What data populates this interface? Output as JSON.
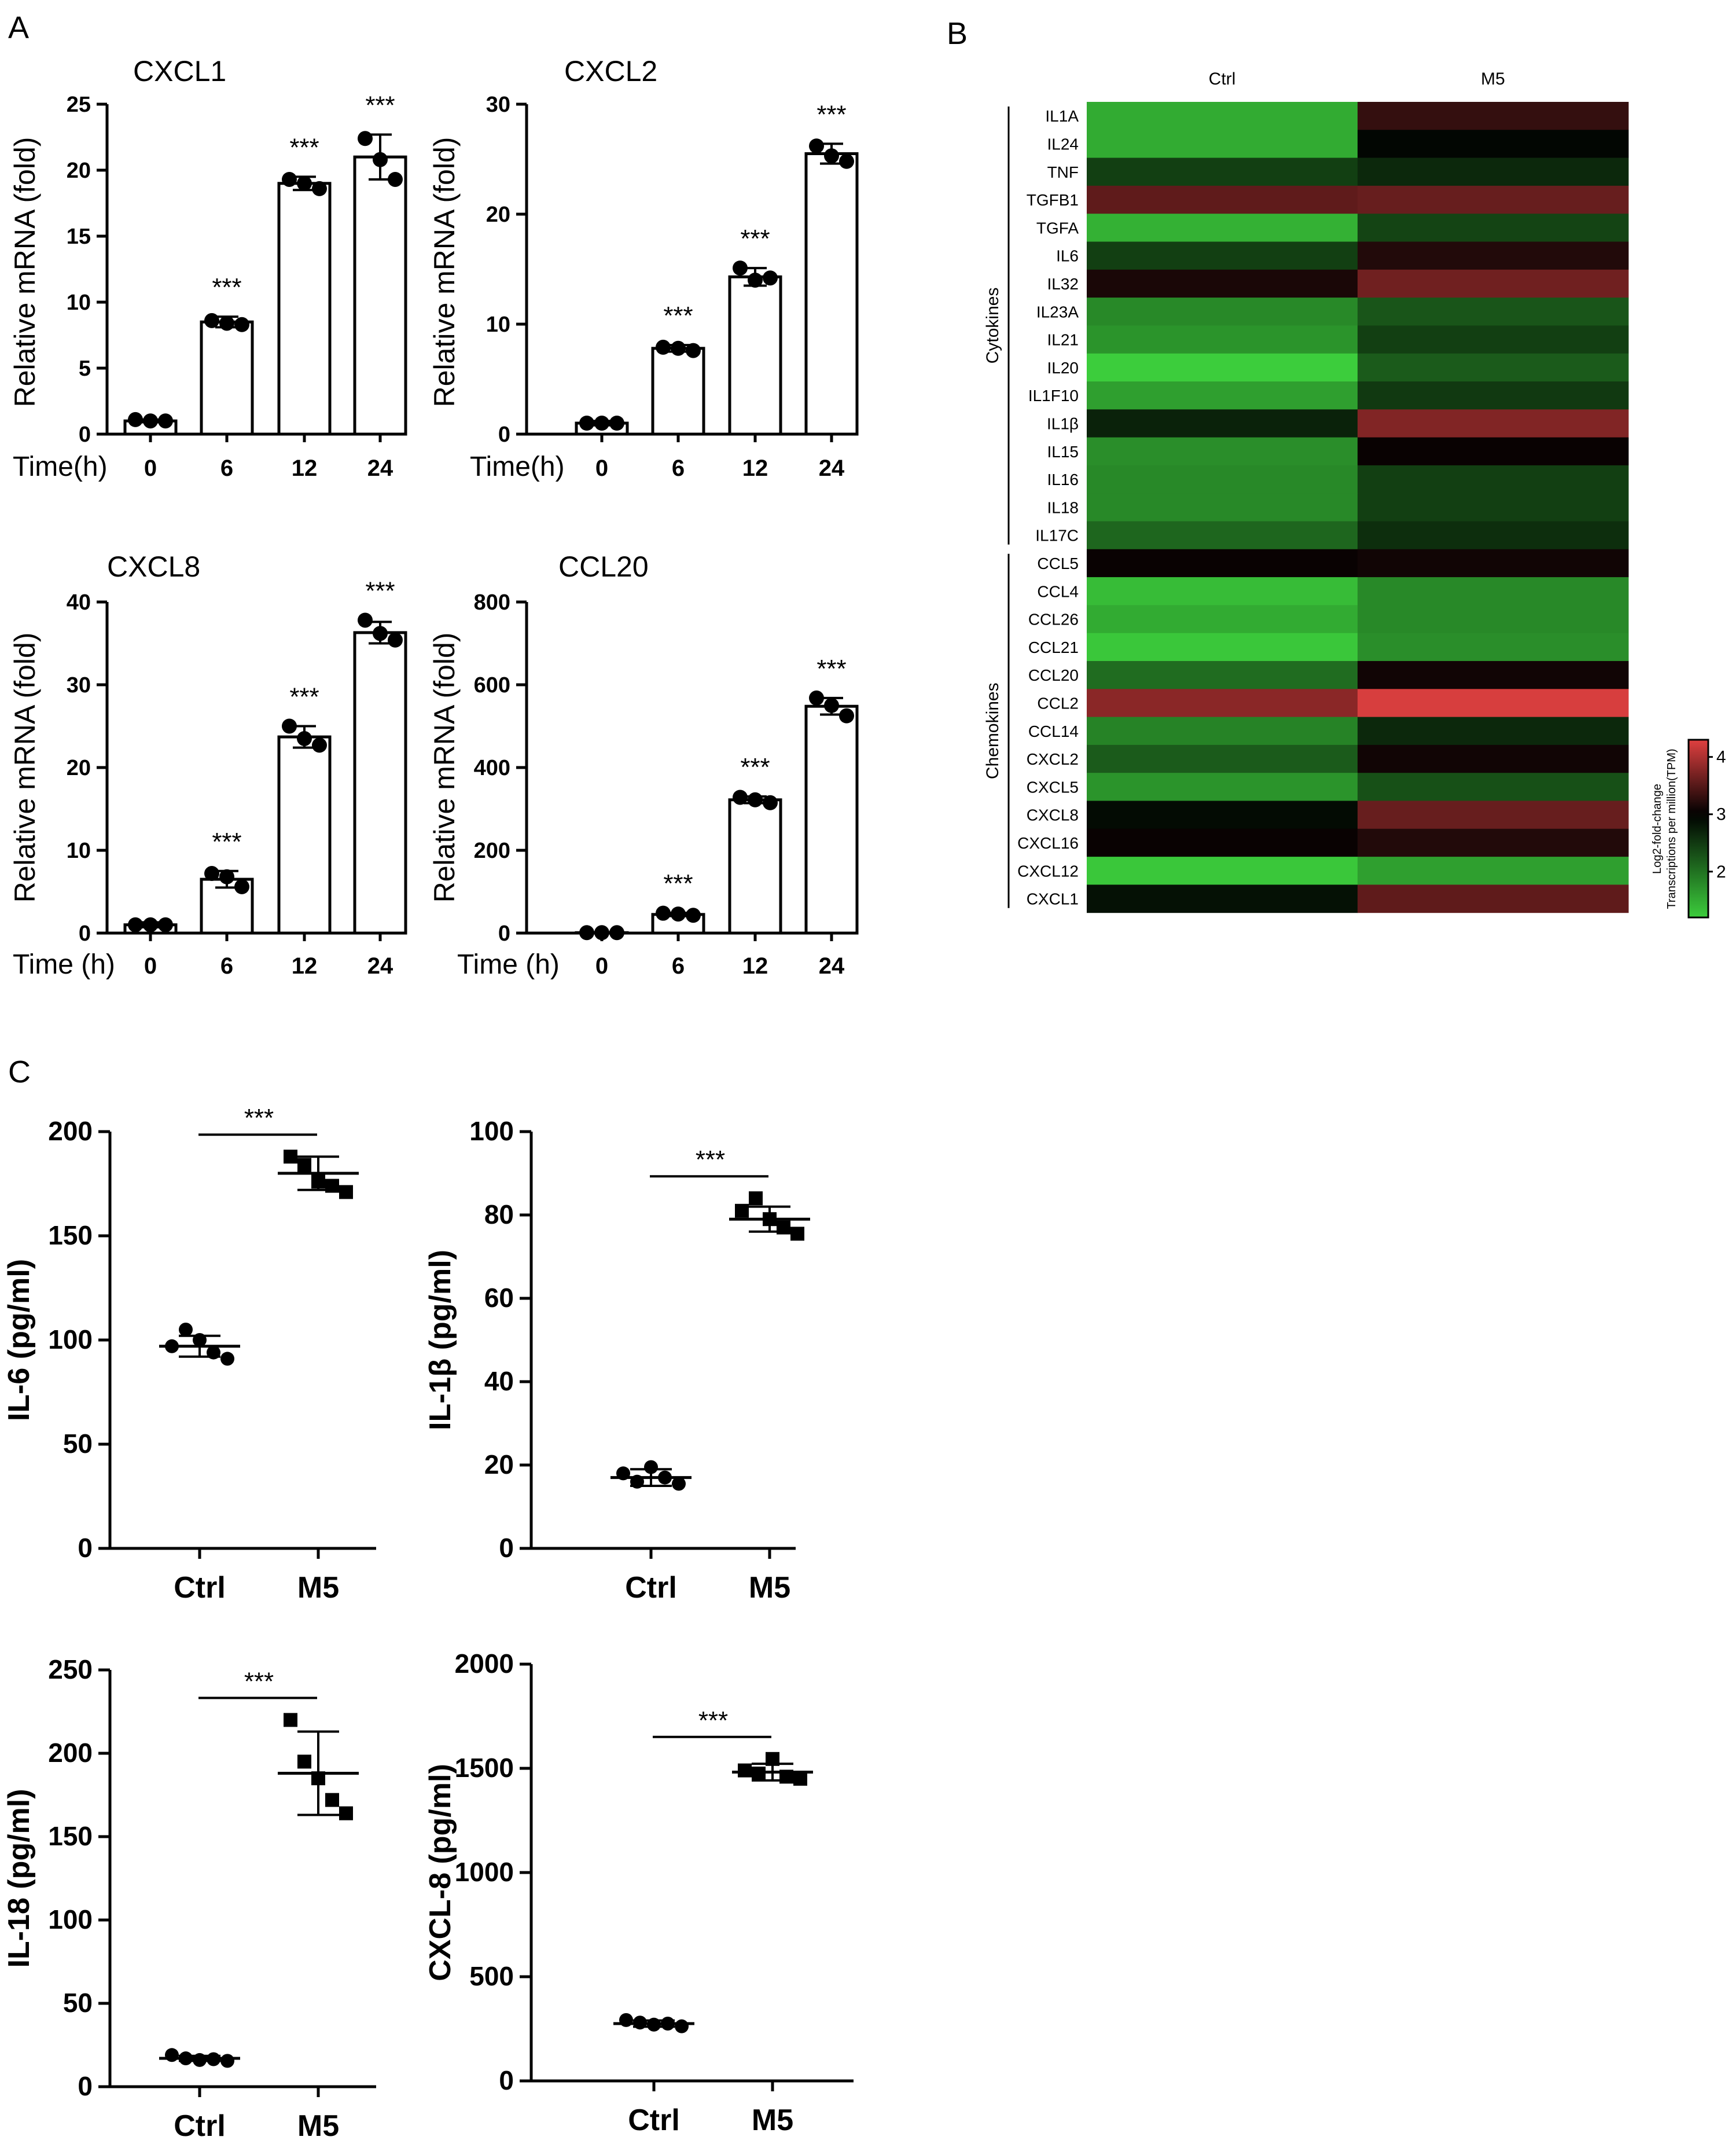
{
  "panels": {
    "A": "A",
    "B": "B",
    "C": "C"
  },
  "chart_data": [
    {
      "id": "cxcl1",
      "type": "bar",
      "title": "CXCL1",
      "xlabel": "Time(h)",
      "ylabel": "Relative mRNA (fold)",
      "categories": [
        "0",
        "6",
        "12",
        "24"
      ],
      "values": [
        1.0,
        8.5,
        19.0,
        21.0
      ],
      "errors": [
        0.1,
        0.4,
        0.5,
        1.7
      ],
      "points": [
        [
          1.1,
          1.0,
          1.0
        ],
        [
          8.6,
          8.4,
          8.3
        ],
        [
          19.3,
          19.0,
          18.6
        ],
        [
          22.4,
          20.8,
          19.3
        ]
      ],
      "significance": [
        "",
        "***",
        "***",
        "***"
      ],
      "ylim": [
        0,
        25
      ],
      "yticks": [
        0,
        5,
        10,
        15,
        20,
        25
      ]
    },
    {
      "id": "cxcl2",
      "type": "bar",
      "title": "CXCL2",
      "xlabel": "Time(h)",
      "ylabel": "Relative mRNA (fold)",
      "categories": [
        "0",
        "6",
        "12",
        "24"
      ],
      "values": [
        1.0,
        7.8,
        14.3,
        25.5
      ],
      "errors": [
        0.2,
        0.3,
        0.8,
        0.9
      ],
      "points": [
        [
          1.0,
          1.0,
          1.0
        ],
        [
          7.9,
          7.8,
          7.6
        ],
        [
          15.1,
          14.0,
          14.2
        ],
        [
          26.2,
          25.3,
          24.8
        ]
      ],
      "significance": [
        "",
        "***",
        "***",
        "***"
      ],
      "ylim": [
        0,
        30
      ],
      "yticks": [
        0,
        10,
        20,
        30
      ]
    },
    {
      "id": "cxcl8",
      "type": "bar",
      "title": "CXCL8",
      "xlabel": "Time (h)",
      "ylabel": "Relative mRNA (fold)",
      "categories": [
        "0",
        "6",
        "12",
        "24"
      ],
      "values": [
        1.0,
        6.5,
        23.7,
        36.3
      ],
      "errors": [
        0.3,
        1.0,
        1.3,
        1.3
      ],
      "points": [
        [
          1.0,
          1.0,
          1.0
        ],
        [
          7.2,
          6.8,
          5.6
        ],
        [
          25.0,
          23.5,
          22.7
        ],
        [
          37.8,
          36.2,
          35.4
        ]
      ],
      "significance": [
        "",
        "***",
        "***",
        "***"
      ],
      "ylim": [
        0,
        40
      ],
      "yticks": [
        0,
        10,
        20,
        30,
        40
      ]
    },
    {
      "id": "ccl20",
      "type": "bar",
      "title": "CCL20",
      "xlabel": "Time (h)",
      "ylabel": "Relative mRNA (fold)",
      "categories": [
        "0",
        "6",
        "12",
        "24"
      ],
      "values": [
        1.0,
        45.0,
        322.0,
        548.0
      ],
      "errors": [
        0.3,
        4.0,
        8.0,
        20.0
      ],
      "points": [
        [
          1.0,
          1.0,
          1.0
        ],
        [
          48.0,
          46.0,
          43.0
        ],
        [
          328.0,
          322.0,
          315.0
        ],
        [
          568.0,
          550.0,
          525.0
        ]
      ],
      "significance": [
        "",
        "***",
        "***",
        "***"
      ],
      "ylim": [
        0,
        800
      ],
      "yticks": [
        0,
        200,
        400,
        600,
        800
      ]
    },
    {
      "id": "il6",
      "type": "scatter",
      "ylabel": "IL-6 (pg/ml)",
      "categories": [
        "Ctrl",
        "M5"
      ],
      "means": [
        97.0,
        180.0
      ],
      "sds": [
        5.0,
        8.0
      ],
      "points": [
        [
          97.0,
          105.0,
          100.0,
          94.0,
          91.0
        ],
        [
          188.0,
          184.0,
          176.0,
          174.0,
          171.0
        ]
      ],
      "significance": "***",
      "ylim": [
        0,
        200
      ],
      "yticks": [
        0,
        50,
        100,
        150,
        200
      ]
    },
    {
      "id": "il1b",
      "type": "scatter",
      "ylabel": "IL-1β (pg/ml)",
      "categories": [
        "Ctrl",
        "M5"
      ],
      "means": [
        17.0,
        79.0
      ],
      "sds": [
        2.0,
        3.0
      ],
      "points": [
        [
          18.0,
          16.0,
          19.5,
          17.0,
          15.5
        ],
        [
          81.0,
          84.0,
          79.0,
          77.0,
          75.5
        ]
      ],
      "significance": "***",
      "ylim": [
        0,
        100
      ],
      "yticks": [
        0,
        20,
        40,
        60,
        80,
        100
      ]
    },
    {
      "id": "il18",
      "type": "scatter",
      "ylabel": "IL-18 (pg/ml)",
      "categories": [
        "Ctrl",
        "M5"
      ],
      "means": [
        17.0,
        188.0
      ],
      "sds": [
        1.5,
        25.0
      ],
      "points": [
        [
          19.0,
          17.0,
          16.0,
          16.5,
          15.5
        ],
        [
          220.0,
          195.0,
          185.0,
          172.0,
          164.0
        ]
      ],
      "significance": "***",
      "ylim": [
        0,
        250
      ],
      "yticks": [
        0,
        50,
        100,
        150,
        200,
        250
      ]
    },
    {
      "id": "cxcl8-protein",
      "type": "scatter",
      "ylabel": "CXCL-8 (pg/ml)",
      "categories": [
        "Ctrl",
        "M5"
      ],
      "means": [
        275.0,
        1482.0
      ],
      "sds": [
        15.0,
        40.0
      ],
      "points": [
        [
          292.0,
          280.0,
          270.0,
          275.0,
          262.0
        ],
        [
          1490.0,
          1475.0,
          1545.0,
          1460.0,
          1450.0
        ]
      ],
      "significance": "***",
      "ylim": [
        0,
        2000
      ],
      "yticks": [
        0,
        500,
        1000,
        1500,
        2000
      ]
    }
  ],
  "heatmap": {
    "type": "heatmap",
    "columns": [
      "Ctrl",
      "M5"
    ],
    "rows": [
      "IL1A",
      "IL24",
      "TNF",
      "TGFB1",
      "TGFA",
      "IL6",
      "IL32",
      "IL23A",
      "IL21",
      "IL20",
      "IL1F10",
      "IL1β",
      "IL15",
      "IL16",
      "IL18",
      "IL17C",
      "CCL5",
      "CCL4",
      "CCL26",
      "CCL21",
      "CCL20",
      "CCL2",
      "CCL14",
      "CXCL2",
      "CXCL5",
      "CXCL8",
      "CXCL16",
      "CXCL12",
      "CXCL1"
    ],
    "values": [
      [
        1.5,
        3.3
      ],
      [
        1.5,
        2.95
      ],
      [
        2.45,
        2.65
      ],
      [
        3.55,
        3.6
      ],
      [
        1.45,
        2.4
      ],
      [
        2.45,
        3.2
      ],
      [
        3.15,
        3.65
      ],
      [
        1.8,
        2.25
      ],
      [
        1.7,
        2.45
      ],
      [
        1.15,
        2.2
      ],
      [
        1.6,
        2.5
      ],
      [
        2.7,
        3.75
      ],
      [
        1.75,
        3.05
      ],
      [
        1.8,
        2.45
      ],
      [
        1.8,
        2.45
      ],
      [
        2.1,
        2.6
      ],
      [
        3.05,
        3.1
      ],
      [
        1.35,
        1.8
      ],
      [
        1.5,
        1.8
      ],
      [
        1.25,
        1.75
      ],
      [
        2.05,
        3.1
      ],
      [
        3.8,
        4.25
      ],
      [
        1.85,
        2.65
      ],
      [
        2.2,
        3.1
      ],
      [
        1.7,
        2.3
      ],
      [
        2.9,
        3.6
      ],
      [
        3.05,
        3.2
      ],
      [
        1.25,
        1.6
      ],
      [
        2.85,
        3.55
      ]
    ],
    "groups": [
      {
        "label": "Cytokines",
        "start": 0,
        "end": 15
      },
      {
        "label": "Chemokines",
        "start": 16,
        "end": 28
      }
    ],
    "colorbar": {
      "label_line1": "Log2-fold-change",
      "label_line2": "Transcriptions per million(TPM)",
      "ticks": [
        "2",
        "3",
        "4"
      ],
      "tick_values": [
        2,
        3,
        4
      ],
      "range": [
        1.2,
        4.3
      ],
      "colors": {
        "low": "#3ccd3c",
        "mid": "#000000",
        "high": "#e04040"
      }
    }
  }
}
